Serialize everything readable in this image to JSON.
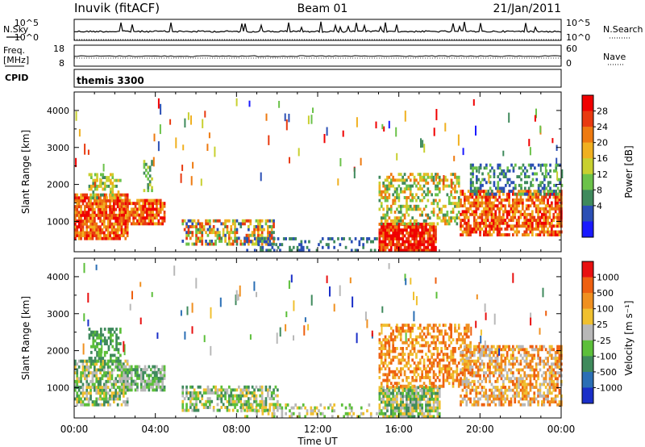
{
  "header": {
    "station": "Inuvik (fitACF)",
    "beam": "Beam 01",
    "date": "21/Jan/2011"
  },
  "top_panel": {
    "left_label": "N.Sky",
    "right_label": "N.Search",
    "left_ticks": [
      "10^5",
      "10^0"
    ],
    "right_ticks": [
      "10^5",
      "10^0"
    ]
  },
  "freq_panel": {
    "left_label_1": "Freq.",
    "left_label_2": "[MHz]",
    "right_label": "Nave",
    "left_ticks": [
      "18",
      "8"
    ],
    "right_ticks": [
      "60",
      "0"
    ]
  },
  "cpid_panel": {
    "label": "CPID",
    "value": "themis 3300"
  },
  "chart_data": [
    {
      "type": "heatmap",
      "name": "power",
      "ylabel": "Slant Range [km]",
      "yticks": [
        1000,
        2000,
        3000,
        4000
      ],
      "ylim": [
        180,
        4500
      ],
      "xlim": [
        0,
        24
      ],
      "colorbar": {
        "label": "Power [dB]",
        "ticks": [
          "28",
          "24",
          "20",
          "16",
          "12",
          "8",
          "4"
        ],
        "colors": [
          "#1a1aff",
          "#2b4fb5",
          "#3f8a5c",
          "#6cc24a",
          "#c8d030",
          "#f0b020",
          "#ee7a10",
          "#e83a10",
          "#f00000"
        ]
      },
      "regions": [
        {
          "t0": 0.0,
          "t1": 2.6,
          "r0": 500,
          "r1": 1700,
          "c": [
            6,
            7,
            8,
            5
          ],
          "d": 0.85
        },
        {
          "t0": 0.7,
          "t1": 2.3,
          "r0": 1600,
          "r1": 2300,
          "c": [
            3,
            4,
            5,
            2
          ],
          "d": 0.5
        },
        {
          "t0": 2.3,
          "t1": 4.4,
          "r0": 900,
          "r1": 1600,
          "c": [
            6,
            7,
            5,
            8
          ],
          "d": 0.8
        },
        {
          "t0": 3.4,
          "t1": 3.8,
          "r0": 1800,
          "r1": 2600,
          "c": [
            2,
            3,
            4
          ],
          "d": 0.4
        },
        {
          "t0": 5.3,
          "t1": 9.8,
          "r0": 350,
          "r1": 1000,
          "c": [
            1,
            2,
            3,
            4,
            5,
            6,
            7
          ],
          "d": 0.6
        },
        {
          "t0": 8.0,
          "t1": 15.0,
          "r0": 180,
          "r1": 550,
          "c": [
            1,
            2
          ],
          "d": 0.25
        },
        {
          "t0": 15.0,
          "t1": 17.8,
          "r0": 180,
          "r1": 900,
          "c": [
            8,
            7,
            8,
            6
          ],
          "d": 0.9
        },
        {
          "t0": 15.0,
          "t1": 19.0,
          "r0": 900,
          "r1": 2300,
          "c": [
            2,
            3,
            4,
            5,
            6
          ],
          "d": 0.45
        },
        {
          "t0": 19.0,
          "t1": 24.0,
          "r0": 600,
          "r1": 1800,
          "c": [
            6,
            7,
            8,
            5
          ],
          "d": 0.7
        },
        {
          "t0": 19.5,
          "t1": 24.0,
          "r0": 1700,
          "r1": 2500,
          "c": [
            1,
            2,
            3
          ],
          "d": 0.35
        }
      ]
    },
    {
      "type": "heatmap",
      "name": "velocity",
      "ylabel": "Slant Range [km]",
      "yticks": [
        1000,
        2000,
        3000,
        4000
      ],
      "ylim": [
        180,
        4500
      ],
      "xlim": [
        0,
        24
      ],
      "xticks": [
        "00:00",
        "04:00",
        "08:00",
        "12:00",
        "16:00",
        "20:00",
        "00:00"
      ],
      "xlabel": "Time UT",
      "colorbar": {
        "label": "Velocity [m s⁻¹]",
        "ticks": [
          "1000",
          "500",
          "100",
          "25",
          "-25",
          "-100",
          "-500",
          "-1000"
        ],
        "colors": [
          "#1a2fc8",
          "#2b6fb5",
          "#3f8a5c",
          "#5cbf3a",
          "#b8b8b8",
          "#f0c030",
          "#f09020",
          "#ee6010",
          "#e81010"
        ]
      },
      "regions": [
        {
          "t0": 0.0,
          "t1": 2.6,
          "r0": 500,
          "r1": 1700,
          "c": [
            4,
            5,
            3,
            2
          ],
          "d": 0.7
        },
        {
          "t0": 0.7,
          "t1": 2.3,
          "r0": 1600,
          "r1": 2600,
          "c": [
            2,
            3
          ],
          "d": 0.5
        },
        {
          "t0": 2.3,
          "t1": 4.4,
          "r0": 900,
          "r1": 1600,
          "c": [
            3,
            2,
            4
          ],
          "d": 0.75
        },
        {
          "t0": 5.3,
          "t1": 10.0,
          "r0": 350,
          "r1": 1000,
          "c": [
            2,
            3,
            4,
            5
          ],
          "d": 0.6
        },
        {
          "t0": 8.0,
          "t1": 15.0,
          "r0": 180,
          "r1": 500,
          "c": [
            3,
            4,
            5
          ],
          "d": 0.25
        },
        {
          "t0": 15.0,
          "t1": 18.0,
          "r0": 180,
          "r1": 1000,
          "c": [
            2,
            3,
            4,
            5
          ],
          "d": 0.85
        },
        {
          "t0": 15.0,
          "t1": 19.5,
          "r0": 1000,
          "r1": 2700,
          "c": [
            6,
            7,
            5
          ],
          "d": 0.5
        },
        {
          "t0": 19.0,
          "t1": 24.0,
          "r0": 500,
          "r1": 2100,
          "c": [
            6,
            7,
            5,
            4
          ],
          "d": 0.6
        }
      ]
    }
  ]
}
